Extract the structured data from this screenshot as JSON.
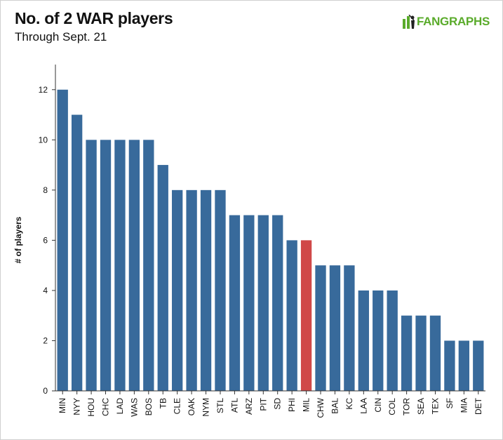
{
  "header": {
    "title": "No. of 2 WAR players",
    "subtitle": "Through Sept. 21"
  },
  "brand": {
    "text": "FANGRAPHS",
    "icon": "fangraphs-batter-icon",
    "color": "#5aab2b"
  },
  "colors": {
    "bar": "#386a9b",
    "highlight": "#d04848"
  },
  "chart_data": {
    "type": "bar",
    "title": "No. of 2 WAR players",
    "subtitle": "Through Sept. 21",
    "xlabel": "",
    "ylabel": "# of players",
    "ylim": [
      0,
      13
    ],
    "yticks": [
      0,
      2,
      4,
      6,
      8,
      10,
      12
    ],
    "grid": false,
    "highlight": "MIL",
    "categories": [
      "MIN",
      "NYY",
      "HOU",
      "CHC",
      "LAD",
      "WAS",
      "BOS",
      "TB",
      "CLE",
      "OAK",
      "NYM",
      "STL",
      "ATL",
      "ARZ",
      "PIT",
      "SD",
      "PHI",
      "MIL",
      "CHW",
      "BAL",
      "KC",
      "LAA",
      "CIN",
      "COL",
      "TOR",
      "SEA",
      "TEX",
      "SF",
      "MIA",
      "DET"
    ],
    "values": [
      12,
      11,
      10,
      10,
      10,
      10,
      10,
      9,
      8,
      8,
      8,
      8,
      7,
      7,
      7,
      7,
      6,
      6,
      5,
      5,
      5,
      4,
      4,
      4,
      3,
      3,
      3,
      2,
      2,
      2
    ]
  }
}
